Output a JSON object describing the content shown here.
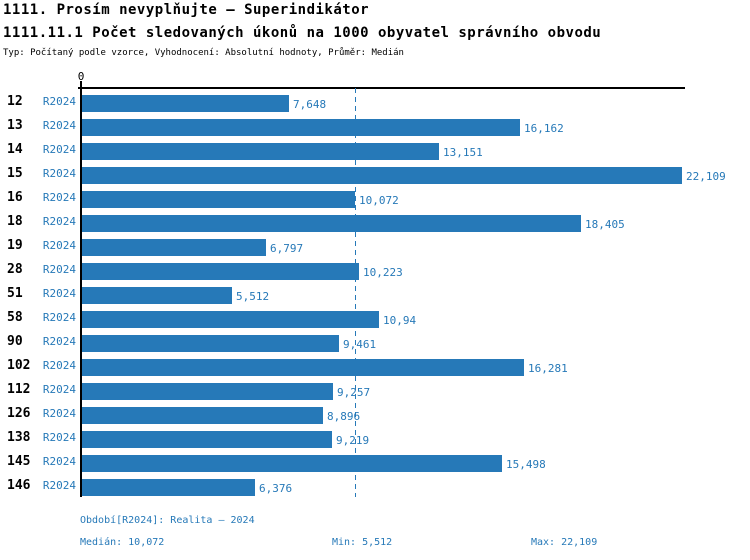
{
  "header": {
    "title": "1111. Prosím nevyplňujte – Superindikátor",
    "subtitle": "1111.11.1 Počet sledovaných úkonů na 1000 obyvatel správního obvodu",
    "meta": "Typ: Počítaný podle vzorce, Vyhodnocení: Absolutní hodnoty, Průměr: Medián"
  },
  "chart_data": {
    "type": "bar",
    "orientation": "horizontal",
    "title": "1111.11.1 Počet sledovaných úkonů na 1000 obyvatel správního obvodu",
    "categories": [
      "12",
      "13",
      "14",
      "15",
      "16",
      "18",
      "19",
      "28",
      "51",
      "58",
      "90",
      "102",
      "112",
      "126",
      "138",
      "145",
      "146"
    ],
    "series": [
      {
        "name": "R2024",
        "values": [
          7.648,
          16.162,
          13.151,
          22.109,
          10.072,
          18.405,
          6.797,
          10.223,
          5.512,
          10.94,
          9.461,
          16.281,
          9.257,
          8.896,
          9.219,
          15.498,
          6.376
        ],
        "value_labels": [
          "7,648",
          "16,162",
          "13,151",
          "22,109",
          "10,072",
          "18,405",
          "6,797",
          "10,223",
          "5,512",
          "10,94",
          "9,461",
          "16,281",
          "9,257",
          "8,896",
          "9,219",
          "15,498",
          "6,376"
        ]
      }
    ],
    "series_label": "R2024",
    "xlim": [
      0,
      22.3
    ],
    "axis": {
      "zero_label": "0"
    },
    "median_value": 10.072,
    "bar_color": "#2679B8",
    "text_color": "#2679B8",
    "grid": false,
    "legend_position": "none"
  },
  "footer": {
    "period": "Období[R2024]: Realita – 2024",
    "median": "Medián: 10,072",
    "min": "Min: 5,512",
    "max": "Max: 22,109"
  }
}
